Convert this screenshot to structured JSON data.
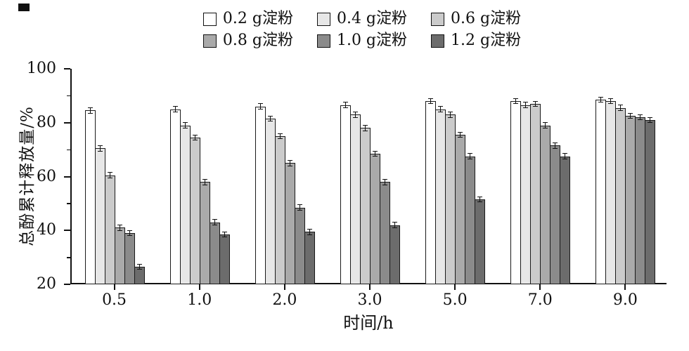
{
  "chart_data": {
    "type": "bar",
    "title": "",
    "xlabel": "时间/h",
    "ylabel": "总酚累计释放量/%",
    "ylim": [
      20,
      100
    ],
    "yticks": [
      20,
      40,
      60,
      80,
      100
    ],
    "y_minor_ticks": [
      30,
      50,
      70,
      90
    ],
    "categories": [
      "0.5",
      "1.0",
      "2.0",
      "3.0",
      "5.0",
      "7.0",
      "9.0"
    ],
    "series": [
      {
        "name": "0.2 g淀粉",
        "color": "#ffffff",
        "values": [
          84.5,
          85.0,
          86.0,
          86.5,
          88.0,
          88.0,
          88.5
        ]
      },
      {
        "name": "0.4 g淀粉",
        "color": "#e7e7e7",
        "values": [
          70.5,
          79.0,
          81.5,
          83.0,
          85.0,
          86.5,
          88.0
        ]
      },
      {
        "name": "0.6 g淀粉",
        "color": "#cbcbcb",
        "values": [
          60.5,
          74.5,
          75.0,
          78.0,
          83.0,
          87.0,
          85.5
        ]
      },
      {
        "name": "0.8 g淀粉",
        "color": "#aaaaaa",
        "values": [
          41.0,
          58.0,
          65.0,
          68.5,
          75.5,
          79.0,
          82.5
        ]
      },
      {
        "name": "1.0 g淀粉",
        "color": "#8b8b8b",
        "values": [
          39.0,
          43.0,
          48.5,
          58.0,
          67.5,
          71.5,
          82.0
        ]
      },
      {
        "name": "1.2 g淀粉",
        "color": "#6c6c6c",
        "values": [
          26.5,
          38.5,
          39.5,
          42.0,
          51.5,
          67.5,
          81.0
        ]
      }
    ],
    "error_bars": true,
    "error_value": 1.0,
    "legend_position": "top-center",
    "grid": false,
    "axis_color": "#111111"
  }
}
